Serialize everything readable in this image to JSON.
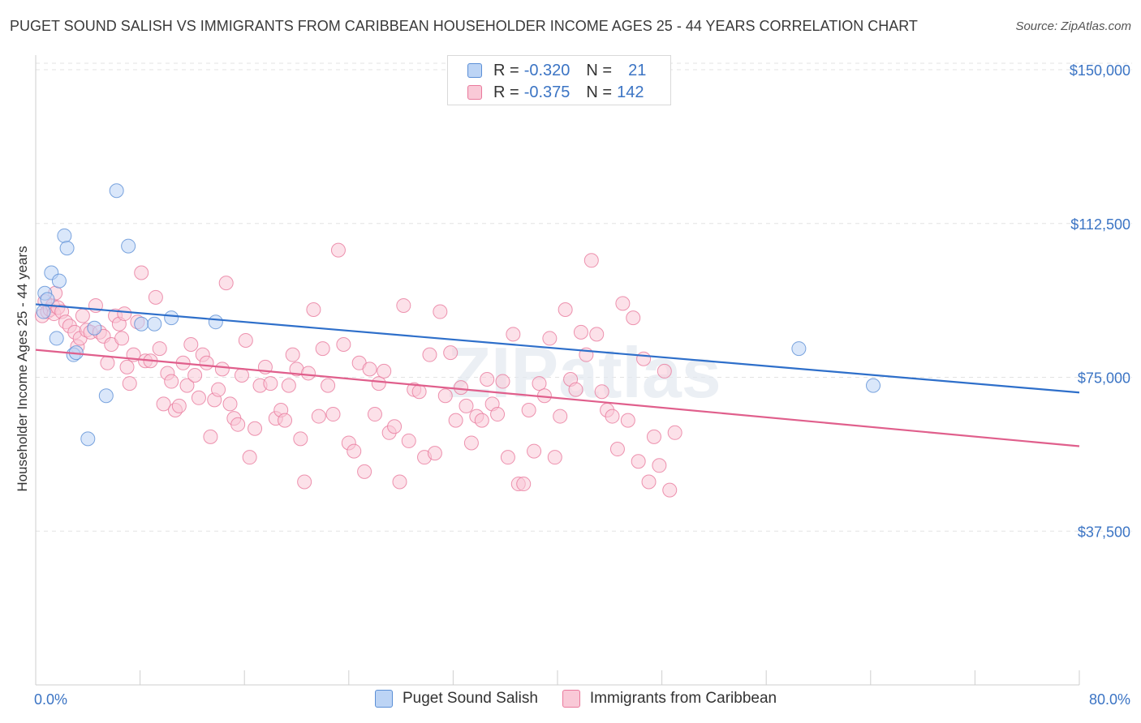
{
  "title": "PUGET SOUND SALISH VS IMMIGRANTS FROM CARIBBEAN HOUSEHOLDER INCOME AGES 25 - 44 YEARS CORRELATION CHART",
  "source": "Source: ZipAtlas.com",
  "watermark": "ZIPatlas",
  "legend": {
    "r_label": "R =",
    "n_label": "N =",
    "series": [
      {
        "r": "-0.320",
        "n": "21",
        "fill": "#bcd4f5",
        "stroke": "#5b8fd6"
      },
      {
        "r": "-0.375",
        "n": "142",
        "fill": "#f9c9d7",
        "stroke": "#e9799c"
      }
    ]
  },
  "chart_data": {
    "type": "scatter",
    "xlabel": "",
    "ylabel": "Householder Income Ages 25 - 44 years",
    "xlim": [
      0,
      80
    ],
    "ylim": [
      0,
      150000
    ],
    "x_tick_labels": [
      "0.0%",
      "80.0%"
    ],
    "y_ticks": [
      37500,
      75000,
      112500,
      150000
    ],
    "y_tick_labels": [
      "$37,500",
      "$75,000",
      "$112,500",
      "$150,000"
    ],
    "grid": true,
    "legend_position": "bottom",
    "series": [
      {
        "name": "Puget Sound Salish",
        "color": "#5b8fd6",
        "fill": "#bcd4f5",
        "trend_color": "#2e6fca",
        "trend": {
          "x0": 0,
          "y0": 92800,
          "x1": 80,
          "y1": 71300
        },
        "points": [
          [
            0.6,
            91000
          ],
          [
            0.7,
            95500
          ],
          [
            0.9,
            94000
          ],
          [
            1.2,
            100500
          ],
          [
            1.6,
            84500
          ],
          [
            1.8,
            98500
          ],
          [
            2.2,
            109500
          ],
          [
            2.4,
            106500
          ],
          [
            2.9,
            80500
          ],
          [
            3.1,
            81000
          ],
          [
            4.5,
            87000
          ],
          [
            5.4,
            70500
          ],
          [
            4.0,
            60000
          ],
          [
            6.2,
            120500
          ],
          [
            7.1,
            107000
          ],
          [
            8.1,
            88000
          ],
          [
            9.1,
            88000
          ],
          [
            10.4,
            89500
          ],
          [
            13.8,
            88500
          ],
          [
            58.5,
            82000
          ],
          [
            64.2,
            73000
          ]
        ]
      },
      {
        "name": "Immigrants from Caribbean",
        "color": "#e9799c",
        "fill": "#f9c9d7",
        "trend_color": "#e05f8c",
        "trend": {
          "x0": 0,
          "y0": 81700,
          "x1": 80,
          "y1": 58200
        },
        "points": [
          [
            0.5,
            90000
          ],
          [
            0.7,
            93500
          ],
          [
            0.9,
            91000
          ],
          [
            1.1,
            91500
          ],
          [
            1.3,
            92500
          ],
          [
            1.4,
            90500
          ],
          [
            1.5,
            95500
          ],
          [
            1.7,
            92000
          ],
          [
            2.0,
            91000
          ],
          [
            2.3,
            88500
          ],
          [
            2.6,
            87500
          ],
          [
            3.0,
            86000
          ],
          [
            3.2,
            82500
          ],
          [
            3.4,
            84500
          ],
          [
            3.6,
            90000
          ],
          [
            3.9,
            86500
          ],
          [
            4.2,
            86000
          ],
          [
            4.6,
            92500
          ],
          [
            4.9,
            86000
          ],
          [
            5.2,
            85000
          ],
          [
            5.5,
            78500
          ],
          [
            5.8,
            83000
          ],
          [
            6.1,
            90000
          ],
          [
            6.4,
            88000
          ],
          [
            6.6,
            84500
          ],
          [
            6.8,
            90500
          ],
          [
            7.0,
            77500
          ],
          [
            7.2,
            73500
          ],
          [
            7.5,
            80500
          ],
          [
            7.8,
            88500
          ],
          [
            8.1,
            100500
          ],
          [
            8.4,
            79000
          ],
          [
            8.8,
            79000
          ],
          [
            9.2,
            94500
          ],
          [
            9.5,
            82000
          ],
          [
            9.8,
            68500
          ],
          [
            10.1,
            76000
          ],
          [
            10.4,
            74000
          ],
          [
            10.7,
            67000
          ],
          [
            11.0,
            68000
          ],
          [
            11.3,
            78500
          ],
          [
            11.6,
            73000
          ],
          [
            11.9,
            83000
          ],
          [
            12.2,
            75500
          ],
          [
            12.5,
            70000
          ],
          [
            12.8,
            80500
          ],
          [
            13.1,
            78500
          ],
          [
            13.4,
            60500
          ],
          [
            13.7,
            69500
          ],
          [
            14.0,
            72000
          ],
          [
            14.3,
            77000
          ],
          [
            14.6,
            98000
          ],
          [
            14.9,
            68500
          ],
          [
            15.2,
            65000
          ],
          [
            15.5,
            63500
          ],
          [
            15.8,
            75500
          ],
          [
            16.1,
            84000
          ],
          [
            16.4,
            55500
          ],
          [
            16.8,
            62500
          ],
          [
            17.2,
            73000
          ],
          [
            17.6,
            77500
          ],
          [
            18.0,
            73500
          ],
          [
            18.4,
            65000
          ],
          [
            18.8,
            67000
          ],
          [
            19.1,
            64500
          ],
          [
            19.4,
            73000
          ],
          [
            19.7,
            80500
          ],
          [
            20.0,
            77000
          ],
          [
            20.3,
            60000
          ],
          [
            20.6,
            49500
          ],
          [
            20.9,
            76000
          ],
          [
            21.3,
            91500
          ],
          [
            21.7,
            65500
          ],
          [
            22.0,
            82000
          ],
          [
            22.4,
            73000
          ],
          [
            22.8,
            66000
          ],
          [
            23.2,
            106000
          ],
          [
            23.6,
            83000
          ],
          [
            24.0,
            59000
          ],
          [
            24.4,
            57000
          ],
          [
            24.8,
            78500
          ],
          [
            25.2,
            52000
          ],
          [
            25.6,
            77000
          ],
          [
            26.0,
            66000
          ],
          [
            26.3,
            73500
          ],
          [
            26.7,
            76500
          ],
          [
            27.1,
            61500
          ],
          [
            27.5,
            63000
          ],
          [
            27.9,
            49500
          ],
          [
            28.2,
            92500
          ],
          [
            28.6,
            59500
          ],
          [
            29.0,
            72000
          ],
          [
            29.4,
            71500
          ],
          [
            29.8,
            55500
          ],
          [
            30.2,
            80500
          ],
          [
            30.6,
            56500
          ],
          [
            31.0,
            91000
          ],
          [
            31.4,
            70500
          ],
          [
            31.8,
            81000
          ],
          [
            32.2,
            64500
          ],
          [
            32.6,
            72500
          ],
          [
            33.0,
            68000
          ],
          [
            33.4,
            59000
          ],
          [
            33.8,
            65500
          ],
          [
            34.2,
            64500
          ],
          [
            34.6,
            74500
          ],
          [
            35.0,
            68500
          ],
          [
            35.4,
            66000
          ],
          [
            35.8,
            74000
          ],
          [
            36.2,
            55500
          ],
          [
            36.6,
            85500
          ],
          [
            37.0,
            49000
          ],
          [
            37.4,
            49000
          ],
          [
            37.8,
            67000
          ],
          [
            38.2,
            57000
          ],
          [
            38.6,
            73500
          ],
          [
            39.0,
            70500
          ],
          [
            39.4,
            84500
          ],
          [
            39.8,
            55500
          ],
          [
            40.2,
            65500
          ],
          [
            40.6,
            91500
          ],
          [
            41.0,
            74500
          ],
          [
            41.4,
            72000
          ],
          [
            41.8,
            86000
          ],
          [
            42.2,
            80500
          ],
          [
            42.6,
            103500
          ],
          [
            43.0,
            85500
          ],
          [
            43.4,
            71500
          ],
          [
            43.8,
            67000
          ],
          [
            44.2,
            65500
          ],
          [
            44.6,
            57500
          ],
          [
            45.0,
            93000
          ],
          [
            45.4,
            64500
          ],
          [
            45.8,
            89500
          ],
          [
            46.2,
            54500
          ],
          [
            46.6,
            79500
          ],
          [
            47.0,
            49500
          ],
          [
            47.4,
            60500
          ],
          [
            47.8,
            53500
          ],
          [
            48.2,
            76500
          ],
          [
            48.6,
            47500
          ],
          [
            49.0,
            61500
          ]
        ]
      }
    ]
  }
}
